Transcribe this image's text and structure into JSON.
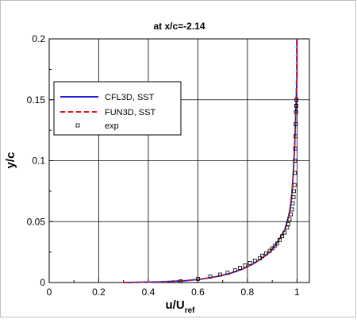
{
  "chart_data": {
    "type": "line",
    "title": "at x/c=-2.14",
    "xlabel": "u/U",
    "xlabel_sub": "ref",
    "ylabel": "y/c",
    "xlim": [
      0,
      1.05
    ],
    "ylim": [
      0,
      0.2
    ],
    "xticks": [
      0,
      0.2,
      0.4,
      0.6,
      0.8,
      1
    ],
    "xtick_labels": [
      "0",
      "0.2",
      "0.4",
      "0.6",
      "0.8",
      "1"
    ],
    "yticks": [
      0,
      0.05,
      0.1,
      0.15,
      0.2
    ],
    "ytick_labels": [
      "0",
      "0.05",
      "0.1",
      "0.15",
      "0.2"
    ],
    "grid": true,
    "legend_position": "upper-left",
    "series": [
      {
        "name": "CFL3D, SST",
        "style": "solid",
        "color": "#1f1fd6",
        "x": [
          0.3,
          0.45,
          0.55,
          0.62,
          0.68,
          0.73,
          0.78,
          0.82,
          0.86,
          0.89,
          0.91,
          0.93,
          0.95,
          0.96,
          0.97,
          0.975,
          0.98,
          0.985,
          0.99,
          0.995,
          1.0,
          1.0
        ],
        "y": [
          0.0,
          0.0005,
          0.0015,
          0.003,
          0.005,
          0.0075,
          0.011,
          0.015,
          0.02,
          0.025,
          0.03,
          0.036,
          0.043,
          0.05,
          0.058,
          0.065,
          0.075,
          0.09,
          0.11,
          0.14,
          0.17,
          0.2
        ]
      },
      {
        "name": "FUN3D, SST",
        "style": "dashed",
        "color": "#d11a1a",
        "x": [
          0.3,
          0.45,
          0.55,
          0.62,
          0.68,
          0.73,
          0.78,
          0.82,
          0.86,
          0.89,
          0.91,
          0.93,
          0.95,
          0.96,
          0.97,
          0.975,
          0.98,
          0.985,
          0.99,
          0.995,
          0.998,
          0.998
        ],
        "y": [
          0.0,
          0.0005,
          0.0015,
          0.003,
          0.005,
          0.0075,
          0.011,
          0.015,
          0.02,
          0.025,
          0.03,
          0.036,
          0.043,
          0.05,
          0.058,
          0.065,
          0.075,
          0.09,
          0.11,
          0.14,
          0.17,
          0.2
        ]
      },
      {
        "name": "exp",
        "style": "markers",
        "color": "#000000",
        "x": [
          0.53,
          0.6,
          0.65,
          0.69,
          0.72,
          0.75,
          0.77,
          0.79,
          0.81,
          0.83,
          0.85,
          0.86,
          0.875,
          0.89,
          0.9,
          0.91,
          0.92,
          0.93,
          0.94,
          0.95,
          0.96,
          0.965,
          0.97,
          0.975,
          0.98,
          0.983,
          0.986,
          0.988,
          0.99,
          0.991,
          0.992,
          0.993,
          0.994,
          0.995,
          0.996,
          0.997,
          0.998
        ],
        "y": [
          0.001,
          0.003,
          0.005,
          0.0065,
          0.008,
          0.01,
          0.012,
          0.014,
          0.016,
          0.018,
          0.02,
          0.022,
          0.024,
          0.026,
          0.028,
          0.03,
          0.032,
          0.035,
          0.038,
          0.041,
          0.045,
          0.048,
          0.052,
          0.056,
          0.06,
          0.065,
          0.07,
          0.075,
          0.08,
          0.09,
          0.1,
          0.11,
          0.12,
          0.13,
          0.14,
          0.145,
          0.15
        ]
      }
    ]
  }
}
